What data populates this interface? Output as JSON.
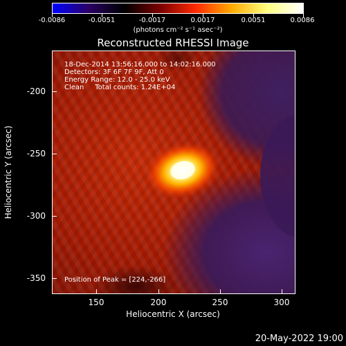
{
  "colorbar": {
    "tick_labels": [
      "-0.0086",
      "-0.0051",
      "-0.0017",
      "0.0017",
      "0.0051",
      "0.0086"
    ],
    "units": "(photons cm⁻² s⁻¹ asec⁻²)",
    "colors": [
      "#0000ff",
      "#2a0066",
      "#000000",
      "#7a0000",
      "#ff2a00",
      "#ffaa00",
      "#ffff80",
      "#ffffff"
    ]
  },
  "title": "Reconstructed RHESSI Image",
  "annotations": {
    "time": "18-Dec-2014 13:56:16.000 to 14:02:16.000",
    "detectors": "Detectors: 3F 6F 7F 9F, Att 0",
    "energy": "Energy Range: 12.0 - 25.0 keV",
    "clean": "Clean     Total counts: 1.24E+04",
    "peak": "Position of Peak = [224,-266]"
  },
  "axes": {
    "xlabel": "Heliocentric X (arcsec)",
    "ylabel": "Heliocentric Y (arcsec)",
    "xticks": [
      "150",
      "200",
      "250",
      "300"
    ],
    "yticks": [
      "-200",
      "-250",
      "-300",
      "-350"
    ],
    "xrange": [
      115,
      315
    ],
    "yrange": [
      -175,
      -375
    ]
  },
  "footer_date": "20-May-2022 19:00",
  "image_colors": {
    "background_red": "#b21a00",
    "dark_red": "#5a0d05",
    "purple": "#3d1a5c",
    "peak_core": "#ffffe0",
    "peak_glow": "#ffb000"
  }
}
